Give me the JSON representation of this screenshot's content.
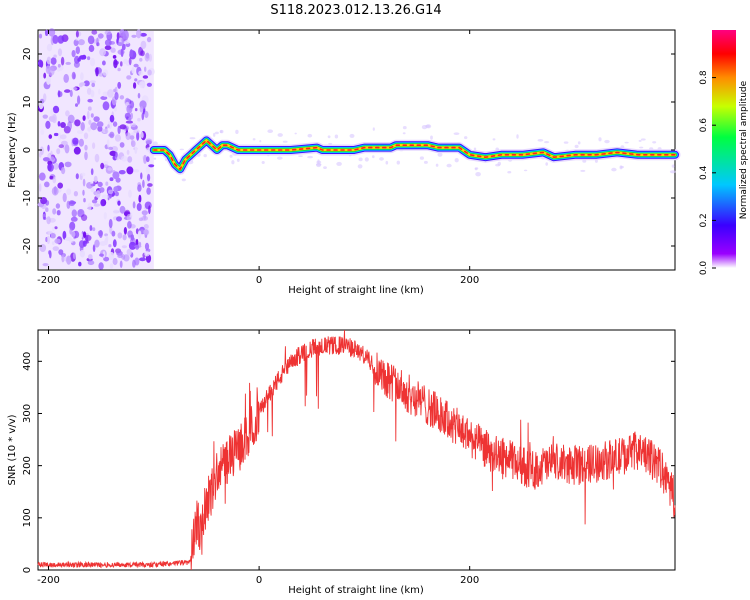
{
  "title": "S118.2023.012.13.26.G14",
  "chart_data": [
    {
      "type": "heatmap",
      "xlabel": "Height of straight line (km)",
      "ylabel": "Frequency (Hz)",
      "xlim": [
        -210,
        395
      ],
      "ylim": [
        -25,
        25
      ],
      "xticks": [
        -200,
        0,
        200
      ],
      "yticks": [
        -20,
        -10,
        0,
        10,
        20
      ],
      "noise_region_x": [
        -210,
        -100
      ],
      "ridge": {
        "x": [
          -100,
          -90,
          -85,
          -80,
          -75,
          -70,
          -65,
          -60,
          -55,
          -50,
          -45,
          -40,
          -35,
          -30,
          -20,
          0,
          30,
          55,
          60,
          90,
          100,
          125,
          130,
          160,
          170,
          190,
          200,
          215,
          230,
          250,
          270,
          280,
          300,
          320,
          340,
          360,
          380,
          395
        ],
        "y": [
          0,
          0,
          -1,
          -3,
          -4,
          -2,
          -1,
          0,
          1,
          2,
          1,
          0,
          1,
          1,
          0,
          0,
          0,
          0.5,
          0,
          0,
          0.5,
          0.5,
          1,
          1,
          0.5,
          0.5,
          -1,
          -1.5,
          -1,
          -1,
          -0.5,
          -1.5,
          -1,
          -1,
          -0.5,
          -1,
          -1,
          -1
        ]
      },
      "colorbar": {
        "label": "Normalized spectral amplitude",
        "ticks": [
          0.0,
          0.2,
          0.4,
          0.6,
          0.8
        ],
        "range": [
          0,
          1
        ],
        "colors": [
          "#ffffff",
          "#9a00ff",
          "#3a00ff",
          "#00c8ff",
          "#00ff40",
          "#c8ff00",
          "#ff8c00",
          "#ff0000",
          "#ff0080"
        ]
      }
    },
    {
      "type": "line",
      "color": "#ee3333",
      "xlabel": "Height of straight line (km)",
      "ylabel": "SNR (10 * v/v)",
      "xlim": [
        -210,
        395
      ],
      "ylim": [
        0,
        460
      ],
      "xticks": [
        -200,
        0,
        200
      ],
      "yticks": [
        0,
        100,
        200,
        300,
        400
      ],
      "trend": {
        "x": [
          -210,
          -150,
          -100,
          -65,
          -60,
          -55,
          -50,
          -45,
          -40,
          -30,
          -20,
          -10,
          0,
          10,
          20,
          30,
          40,
          50,
          60,
          70,
          80,
          90,
          100,
          110,
          120,
          140,
          160,
          180,
          200,
          220,
          240,
          250,
          260,
          270,
          280,
          300,
          320,
          340,
          360,
          380,
          395
        ],
        "y": [
          10,
          10,
          10,
          15,
          90,
          80,
          130,
          150,
          190,
          210,
          230,
          260,
          300,
          340,
          370,
          395,
          415,
          425,
          430,
          430,
          430,
          425,
          410,
          390,
          370,
          340,
          315,
          285,
          255,
          225,
          210,
          200,
          190,
          200,
          205,
          200,
          205,
          215,
          230,
          200,
          140
        ]
      }
    }
  ]
}
